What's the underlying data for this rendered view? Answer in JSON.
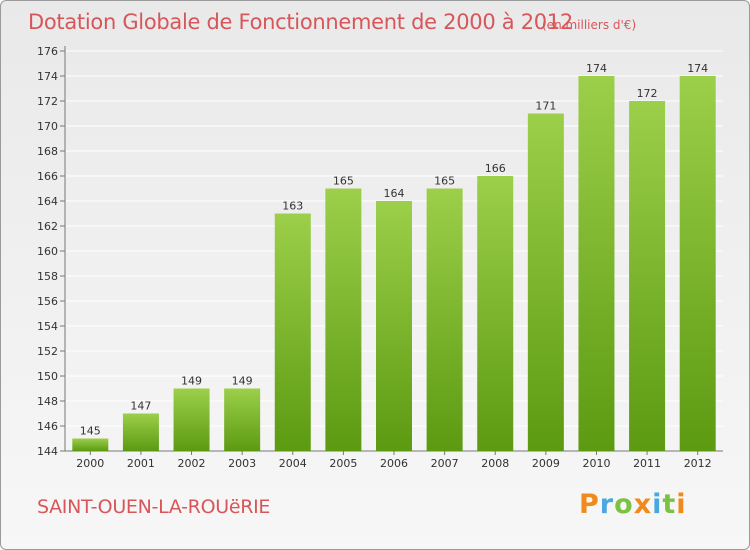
{
  "title": "Dotation Globale de Fonctionnement de 2000 à 2012",
  "unit_note": "(en milliers d'€)",
  "town": "SAINT-OUEN-LA-ROUëRIE",
  "logo": {
    "text": "Proxiti",
    "letters": [
      {
        "ch": "P",
        "color": "#f08a1c"
      },
      {
        "ch": "r",
        "color": "#4aa8de"
      },
      {
        "ch": "o",
        "color": "#7cc242"
      },
      {
        "ch": "x",
        "color": "#f08a1c"
      },
      {
        "ch": "i",
        "color": "#4aa8de"
      },
      {
        "ch": "t",
        "color": "#7cc242"
      },
      {
        "ch": "i",
        "color": "#f08a1c"
      }
    ]
  },
  "colors": {
    "title": "#d8565a",
    "bar_light": "#9ccf4a",
    "bar_dark": "#5c9a12",
    "grid": "#ffffff"
  },
  "chart_data": {
    "type": "bar",
    "title": "Dotation Globale de Fonctionnement de 2000 à 2012",
    "xlabel": "",
    "ylabel": "",
    "categories": [
      "2000",
      "2001",
      "2002",
      "2003",
      "2004",
      "2005",
      "2006",
      "2007",
      "2008",
      "2009",
      "2010",
      "2011",
      "2012"
    ],
    "values": [
      145,
      147,
      149,
      149,
      163,
      165,
      164,
      165,
      166,
      171,
      174,
      172,
      174
    ],
    "data_labels": [
      "145",
      "147",
      "149",
      "149",
      "163",
      "165",
      "164",
      "165",
      "166",
      "171",
      "174",
      "172",
      "174"
    ],
    "ylim": [
      144,
      176
    ],
    "yticks": [
      144,
      146,
      148,
      150,
      152,
      154,
      156,
      158,
      160,
      162,
      164,
      166,
      168,
      170,
      172,
      174,
      176
    ],
    "grid": true,
    "legend": "none"
  }
}
